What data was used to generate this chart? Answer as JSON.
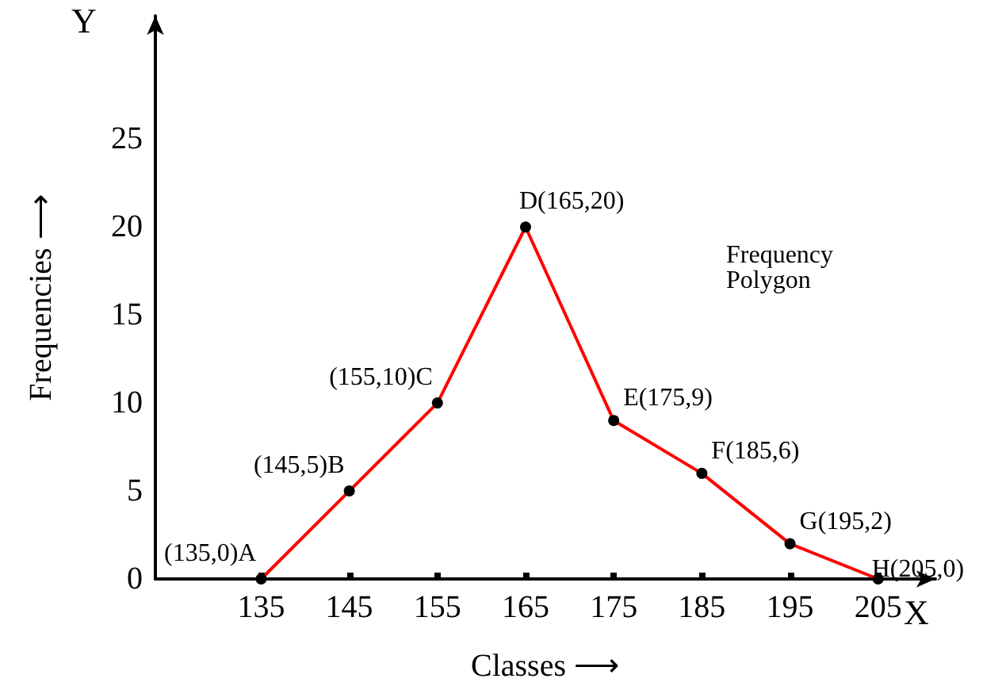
{
  "chart_data": {
    "type": "line",
    "xlabel": "Classes ⟶",
    "ylabel": "Frequencies ⟶",
    "x": [
      135,
      145,
      155,
      165,
      175,
      185,
      195,
      205
    ],
    "series": [
      {
        "color": "#ff0000",
        "values": [
          0,
          5,
          10,
          20,
          9,
          6,
          2,
          0
        ]
      }
    ],
    "xlim": [
      123,
      211.5
    ],
    "ylim": [
      0,
      32
    ],
    "xticks": [
      135,
      145,
      155,
      165,
      175,
      185,
      195,
      205
    ],
    "yticks": [
      0,
      5,
      10,
      15,
      20,
      25
    ],
    "grid": false,
    "marker": "circle",
    "line_style": "solid",
    "annotations": [
      "Y",
      "X",
      "Frequency\nPolygon",
      {
        "text": "(135,0)A",
        "x": 135,
        "y": 0
      },
      {
        "text": "(145,5)B",
        "x": 145,
        "y": 5
      },
      {
        "text": "(155,10)C",
        "x": 155,
        "y": 10
      },
      {
        "text": "D(165,20)",
        "x": 165,
        "y": 20
      },
      {
        "text": "E(175,9)",
        "x": 175,
        "y": 9
      },
      {
        "text": "F(185,6)",
        "x": 185,
        "y": 6
      },
      {
        "text": "G(195,2)",
        "x": 195,
        "y": 2
      },
      {
        "text": "H(205,0)",
        "x": 205,
        "y": 0
      }
    ]
  }
}
